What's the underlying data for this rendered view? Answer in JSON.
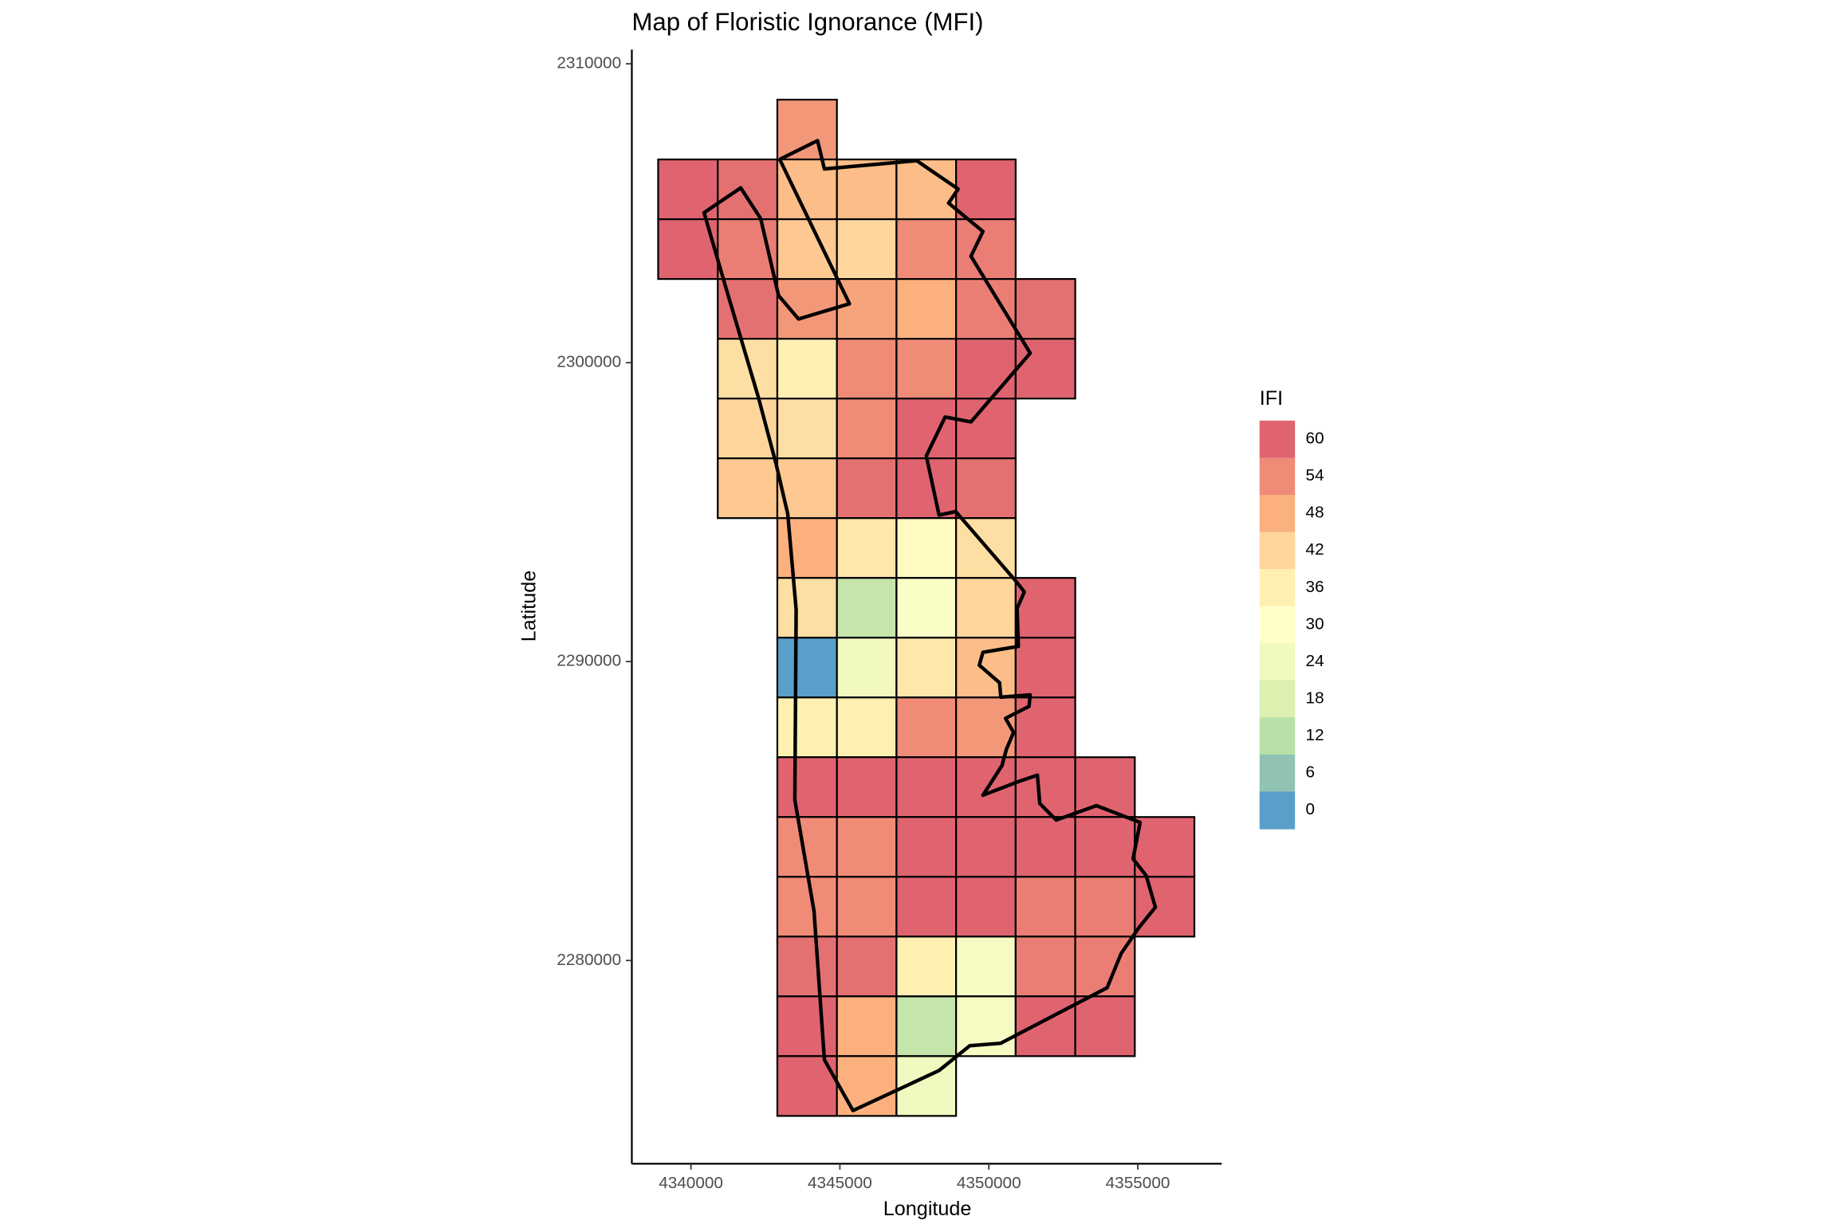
{
  "chart_data": {
    "type": "tile",
    "title": "Map of Floristic Ignorance (MFI)",
    "x_label": "Longitude",
    "y_label": "Latitude",
    "xlim": [
      4338016,
      4357817
    ],
    "ylim": [
      2273200,
      2310474
    ],
    "xticks": [
      4340000,
      4345000,
      4350000,
      4355000
    ],
    "yticks": [
      2280000,
      2290000,
      2300000,
      2310000
    ],
    "x": [
      4343900,
      4339900,
      4341900,
      4343900,
      4345900,
      4347900,
      4349900,
      4339900,
      4341900,
      4343900,
      4345900,
      4347900,
      4349900,
      4341900,
      4343900,
      4345900,
      4347900,
      4349900,
      4351900,
      4341900,
      4343900,
      4345900,
      4347900,
      4349900,
      4351900,
      4341900,
      4343900,
      4345900,
      4347900,
      4349900,
      4341900,
      4343900,
      4345900,
      4347900,
      4349900,
      4343900,
      4345900,
      4347900,
      4349900,
      4343900,
      4345900,
      4347900,
      4349900,
      4351900,
      4343900,
      4345900,
      4347900,
      4349900,
      4351900,
      4343900,
      4345900,
      4347900,
      4349900,
      4351900,
      4343900,
      4345900,
      4347900,
      4349900,
      4351900,
      4353900,
      4343900,
      4345900,
      4347900,
      4349900,
      4351900,
      4353900,
      4355900,
      4343900,
      4345900,
      4347900,
      4349900,
      4351900,
      4353900,
      4355900,
      4343900,
      4345900,
      4347900,
      4349900,
      4351900,
      4353900,
      4343900,
      4345900,
      4347900,
      4349900,
      4351900,
      4353900,
      4343900,
      4345900,
      4347900
    ],
    "y": [
      2307800,
      2305800,
      2305800,
      2305800,
      2305800,
      2305800,
      2305800,
      2303800,
      2303800,
      2303800,
      2303800,
      2303800,
      2303800,
      2301800,
      2301800,
      2301800,
      2301800,
      2301800,
      2301800,
      2299800,
      2299800,
      2299800,
      2299800,
      2299800,
      2299800,
      2297800,
      2297800,
      2297800,
      2297800,
      2297800,
      2295800,
      2295800,
      2295800,
      2295800,
      2295800,
      2293800,
      2293800,
      2293800,
      2293800,
      2291800,
      2291800,
      2291800,
      2291800,
      2291800,
      2289800,
      2289800,
      2289800,
      2289800,
      2289800,
      2287800,
      2287800,
      2287800,
      2287800,
      2287800,
      2285800,
      2285800,
      2285800,
      2285800,
      2285800,
      2285800,
      2283800,
      2283800,
      2283800,
      2283800,
      2283800,
      2283800,
      2283800,
      2281800,
      2281800,
      2281800,
      2281800,
      2281800,
      2281800,
      2281800,
      2279800,
      2279800,
      2279800,
      2279800,
      2279800,
      2279800,
      2277800,
      2277800,
      2277800,
      2277800,
      2277800,
      2277800,
      2275800,
      2275800,
      2275800
    ],
    "values": [
      52,
      60,
      58,
      46,
      46,
      46,
      62,
      62,
      56,
      44,
      42,
      54,
      56,
      58,
      52,
      50,
      48,
      56,
      58,
      40,
      36,
      54,
      54,
      60,
      60,
      42,
      40,
      54,
      60,
      60,
      44,
      44,
      58,
      60,
      58,
      48,
      38,
      32,
      40,
      40,
      14,
      28,
      42,
      60,
      0,
      24,
      38,
      46,
      60,
      36,
      36,
      54,
      52,
      60,
      60,
      60,
      60,
      60,
      60,
      60,
      54,
      54,
      60,
      60,
      60,
      60,
      60,
      54,
      54,
      60,
      60,
      56,
      56,
      60,
      58,
      58,
      36,
      26,
      56,
      56,
      60,
      48,
      14,
      26,
      60,
      60,
      60,
      48,
      24
    ],
    "boundary": {
      "x": [
        4342980,
        4344250,
        4344480,
        4347580,
        4348970,
        4348650,
        4349800,
        4349400,
        4351390,
        4349400,
        4348530,
        4347900,
        4348330,
        4348890,
        4350910,
        4351190,
        4350950,
        4350990,
        4349800,
        4349680,
        4350360,
        4350400,
        4351390,
        4351350,
        4350560,
        4350830,
        4350590,
        4350440,
        4349800,
        4351030,
        4351630,
        4351710,
        4352260,
        4353610,
        4355080,
        4354840,
        4355280,
        4355590,
        4355040,
        4354440,
        4353970,
        4350400,
        4349360,
        4348330,
        4345440,
        4344480,
        4344130,
        4343490,
        4343530,
        4343250,
        4342860,
        4342260,
        4341190,
        4340440,
        4341670,
        4342340,
        4342940,
        4343610,
        4345320,
        4342980
      ],
      "y": [
        2306800,
        2307430,
        2306480,
        2306760,
        2305810,
        2305340,
        2304390,
        2303560,
        2300320,
        2298020,
        2298180,
        2296880,
        2294900,
        2295020,
        2292690,
        2292330,
        2291780,
        2290510,
        2290310,
        2289880,
        2289290,
        2288810,
        2288890,
        2288500,
        2288100,
        2287630,
        2287070,
        2286520,
        2285530,
        2286000,
        2286200,
        2285250,
        2284700,
        2285180,
        2284620,
        2283400,
        2282840,
        2281780,
        2281100,
        2280230,
        2279090,
        2277230,
        2277150,
        2276320,
        2274980,
        2276680,
        2281660,
        2285370,
        2291740,
        2294940,
        2296600,
        2298850,
        2302450,
        2305020,
        2305850,
        2304820,
        2302250,
        2301460,
        2301970,
        2306800
      ]
    },
    "legend": {
      "title": "IFI",
      "values": [
        60,
        54,
        48,
        42,
        36,
        30,
        24,
        18,
        12,
        6,
        0
      ],
      "colors": [
        "#df6470",
        "#ef8b77",
        "#fbb07e",
        "#fed69b",
        "#fff0b2",
        "#ffffca",
        "#f2f9c0",
        "#dcf0b0",
        "#b9e0a8",
        "#91c3b5",
        "#5a9fca"
      ]
    }
  }
}
